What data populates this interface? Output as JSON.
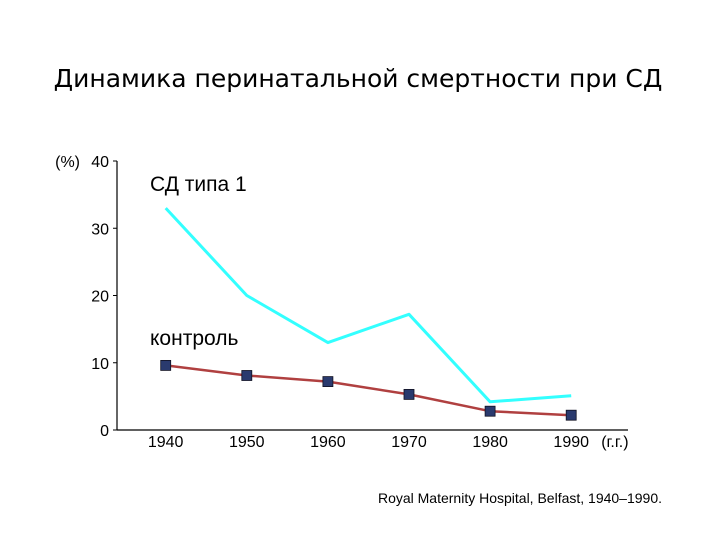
{
  "title": "Динамика перинатальной смертности при СД",
  "source": "Royal Maternity Hospital, Belfast, 1940–1990.",
  "chart_data": {
    "type": "line",
    "ylabel": "(%)",
    "xlabel": "(г.г.)",
    "ylim": [
      0,
      40
    ],
    "yticks": [
      0,
      10,
      20,
      30,
      40
    ],
    "x": [
      1940,
      1950,
      1960,
      1970,
      1980,
      1990
    ],
    "xlim": [
      1934,
      1997
    ],
    "grid": false,
    "series": [
      {
        "name": "СД типа 1",
        "color": "#33ffff",
        "marker": "none",
        "values": [
          33,
          20,
          13,
          17.2,
          4.2,
          5.1
        ]
      },
      {
        "name": "контроль",
        "color": "#b04040",
        "marker": "square",
        "marker_color": "#2a3a6e",
        "values": [
          9.6,
          8.1,
          7.2,
          5.3,
          2.8,
          2.2
        ]
      }
    ]
  }
}
